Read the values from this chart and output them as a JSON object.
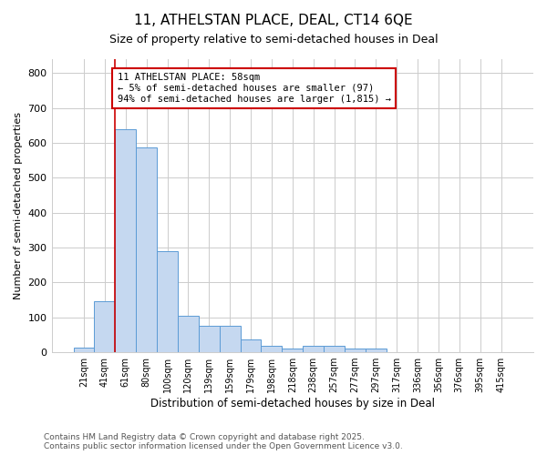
{
  "title1": "11, ATHELSTAN PLACE, DEAL, CT14 6QE",
  "title2": "Size of property relative to semi-detached houses in Deal",
  "xlabel": "Distribution of semi-detached houses by size in Deal",
  "ylabel": "Number of semi-detached properties",
  "categories": [
    "21sqm",
    "41sqm",
    "61sqm",
    "80sqm",
    "100sqm",
    "120sqm",
    "139sqm",
    "159sqm",
    "179sqm",
    "198sqm",
    "218sqm",
    "238sqm",
    "257sqm",
    "277sqm",
    "297sqm",
    "317sqm",
    "336sqm",
    "356sqm",
    "376sqm",
    "395sqm",
    "415sqm"
  ],
  "values": [
    12,
    147,
    638,
    588,
    289,
    104,
    77,
    77,
    37,
    18,
    10,
    18,
    18,
    10,
    10,
    0,
    0,
    0,
    0,
    0,
    0
  ],
  "bar_color": "#c5d8f0",
  "bar_edge_color": "#5b9bd5",
  "vline_color": "#cc0000",
  "annotation_text": "11 ATHELSTAN PLACE: 58sqm\n← 5% of semi-detached houses are smaller (97)\n94% of semi-detached houses are larger (1,815) →",
  "annotation_box_color": "#ffffff",
  "annotation_box_edge": "#cc0000",
  "ylim": [
    0,
    840
  ],
  "yticks": [
    0,
    100,
    200,
    300,
    400,
    500,
    600,
    700,
    800
  ],
  "footer_text": "Contains HM Land Registry data © Crown copyright and database right 2025.\nContains public sector information licensed under the Open Government Licence v3.0.",
  "bg_color": "#ffffff",
  "plot_bg_color": "#ffffff",
  "grid_color": "#cccccc"
}
